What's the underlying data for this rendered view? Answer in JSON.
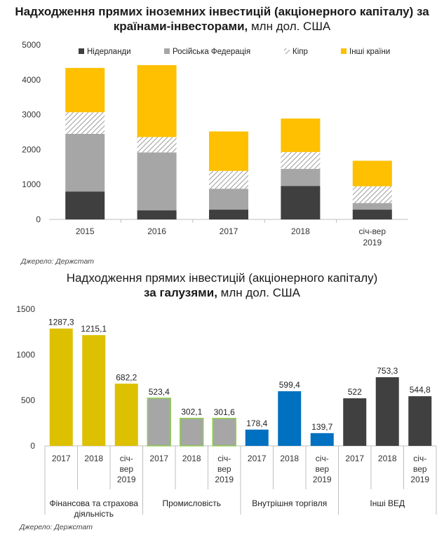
{
  "charts": [
    {
      "title_bold": "Надходження прямих іноземних інвестицій (акціонерного капіталу) за країнами-інвесторами,",
      "title_normal": " млн дол. США",
      "source": "Джерело: Держстат"
    },
    {
      "title_line1": "Надходження прямих інвестицій (акціонерного капіталу)",
      "title_line2_bold": "за галузями,",
      "title_line2_normal": " млн дол. США",
      "source": "Джерело: Держстат"
    }
  ],
  "chart_data": [
    {
      "type": "bar",
      "stacked": true,
      "title": "Надходження прямих іноземних інвестицій (акціонерного капіталу) за країнами-інвесторами, млн дол. США",
      "categories": [
        "2015",
        "2016",
        "2017",
        "2018",
        "січ-вер 2019"
      ],
      "category_lines": [
        [
          "2015"
        ],
        [
          "2016"
        ],
        [
          "2017"
        ],
        [
          "2018"
        ],
        [
          "січ-вер",
          "2019"
        ]
      ],
      "series": [
        {
          "name": "Нідерланди",
          "color": "#3f3f3f",
          "pattern": "",
          "values": [
            800,
            260,
            280,
            960,
            280
          ]
        },
        {
          "name": "Російська Федерація",
          "color": "#a6a6a6",
          "pattern": "",
          "values": [
            1650,
            1660,
            600,
            490,
            190
          ]
        },
        {
          "name": "Кіпр",
          "color": "#d9d9d9",
          "pattern": "hatch",
          "values": [
            620,
            440,
            510,
            480,
            480
          ]
        },
        {
          "name": "Інші країни",
          "color": "#fec000",
          "pattern": "",
          "values": [
            1270,
            2060,
            1130,
            960,
            730
          ]
        }
      ],
      "ylim": [
        0,
        5000
      ],
      "yticks": [
        "0",
        "1000",
        "2000",
        "3000",
        "4000",
        "5000"
      ],
      "legend": "top"
    },
    {
      "type": "bar",
      "title": "Надходження прямих інвестицій (акціонерного капіталу) за галузями, млн дол. США",
      "groups": [
        {
          "name": "Фінансова та страхова діяльність",
          "name_lines": [
            "Фінансова та страхова",
            "діяльність"
          ],
          "color": "#ddc000",
          "outline": "",
          "categories": [
            "2017",
            "2018",
            "січ-вер 2019"
          ],
          "category_lines": [
            [
              "2017"
            ],
            [
              "2018"
            ],
            [
              "січ-",
              "вер",
              "2019"
            ]
          ],
          "values": [
            1287.3,
            1215.1,
            682.2
          ],
          "labels": [
            "1287,3",
            "1215,1",
            "682,2"
          ]
        },
        {
          "name": "Промисловість",
          "name_lines": [
            "Промисловість"
          ],
          "color": "#a6a6a6",
          "outline": "#8fd14f",
          "categories": [
            "2017",
            "2018",
            "січ-вер 2019"
          ],
          "category_lines": [
            [
              "2017"
            ],
            [
              "2018"
            ],
            [
              "січ-",
              "вер",
              "2019"
            ]
          ],
          "values": [
            523.4,
            302.1,
            301.6
          ],
          "labels": [
            "523,4",
            "302,1",
            "301,6"
          ]
        },
        {
          "name": "Внутрішня торгівля",
          "name_lines": [
            "Внутрішня торгівля"
          ],
          "color": "#0070c0",
          "outline": "",
          "categories": [
            "2017",
            "2018",
            "січ-вер 2019"
          ],
          "category_lines": [
            [
              "2017"
            ],
            [
              "2018"
            ],
            [
              "січ-",
              "вер",
              "2019"
            ]
          ],
          "values": [
            178.4,
            599.4,
            139.7
          ],
          "labels": [
            "178,4",
            "599,4",
            "139,7"
          ]
        },
        {
          "name": "Інші ВЕД",
          "name_lines": [
            "Інші ВЕД"
          ],
          "color": "#404040",
          "outline": "",
          "categories": [
            "2017",
            "2018",
            "січ-вер 2019"
          ],
          "category_lines": [
            [
              "2017"
            ],
            [
              "2018"
            ],
            [
              "січ-",
              "вер",
              "2019"
            ]
          ],
          "values": [
            522,
            753.3,
            544.8
          ],
          "labels": [
            "522",
            "753,3",
            "544,8"
          ]
        }
      ],
      "ylim": [
        0,
        1500
      ],
      "yticks": [
        "0",
        "500",
        "1000",
        "1500"
      ]
    }
  ]
}
